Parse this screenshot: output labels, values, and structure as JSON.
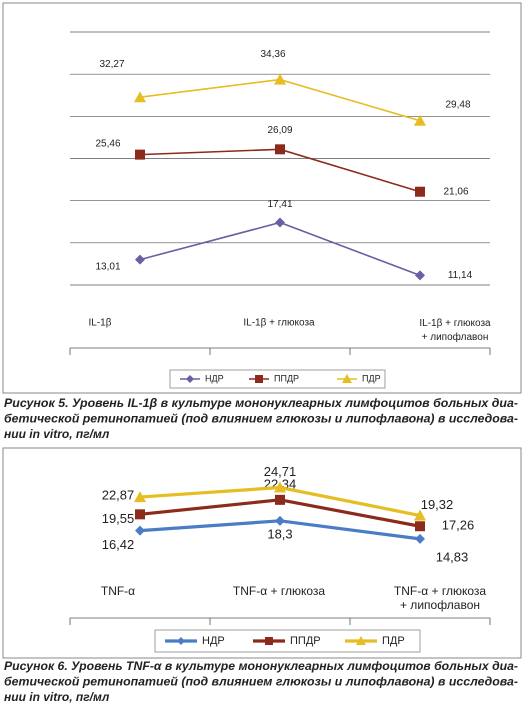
{
  "chart_data": [
    {
      "type": "line",
      "categories": [
        "IL-1β",
        "IL-1β + глюкоза",
        "IL-1β + глюкоза\n+ липофлавон"
      ],
      "series": [
        {
          "name": "НДР",
          "color": "#6b5fa3",
          "marker": "diamond",
          "values": [
            13.01,
            17.41,
            11.14
          ],
          "value_labels": [
            "13,01",
            "17,41",
            "11,14"
          ]
        },
        {
          "name": "ППДР",
          "color": "#8c2b1b",
          "marker": "square",
          "values": [
            25.46,
            26.09,
            21.06
          ],
          "value_labels": [
            "25,46",
            "26,09",
            "21,06"
          ]
        },
        {
          "name": "ПДР",
          "color": "#e6bd22",
          "marker": "triangle",
          "values": [
            32.27,
            34.36,
            29.48
          ],
          "value_labels": [
            "32,27",
            "34,36",
            "29,48"
          ]
        }
      ],
      "ylim": [
        10,
        40
      ],
      "yticks": [
        10,
        15,
        20,
        25,
        30,
        35,
        40
      ],
      "grid": true,
      "legend": "bottom"
    },
    {
      "type": "line",
      "categories": [
        "TNF-α",
        "TNF-α + глюкоза",
        "TNF-α + глюкоза\n+ липофлавон"
      ],
      "series": [
        {
          "name": "НДР",
          "color": "#4a7dc6",
          "marker": "diamond",
          "values": [
            16.42,
            18.3,
            14.83
          ],
          "value_labels": [
            "16,42",
            "18,3",
            "14,83"
          ]
        },
        {
          "name": "ППДР",
          "color": "#8c2b1b",
          "marker": "square",
          "values": [
            19.55,
            22.34,
            17.26
          ],
          "value_labels": [
            "19,55",
            "22,34",
            "17,26"
          ]
        },
        {
          "name": "ПДР",
          "color": "#e6bd22",
          "marker": "triangle",
          "values": [
            22.87,
            24.71,
            19.32
          ],
          "value_labels": [
            "22,87",
            "24,71",
            "19,32"
          ]
        }
      ],
      "ylim": [
        0,
        30
      ],
      "grid": false,
      "legend": "bottom"
    }
  ],
  "captions": [
    [
      "Рисунок 5. Уровень IL-1β в культуре мононуклеарных лимфоцитов больных диа-",
      "бетической ретинопатией (под влиянием глюкозы и липофлавона) в исследова-",
      "нии in vitro, пг/мл"
    ],
    [
      "Рисунок 6. Уровень TNF-α в культуре мононуклеарных лимфоцитов больных диа-",
      "бетической ретинопатией (под влиянием глюкозы и липофлавона) в исследова-",
      "нии in vitro, пг/мл"
    ]
  ]
}
